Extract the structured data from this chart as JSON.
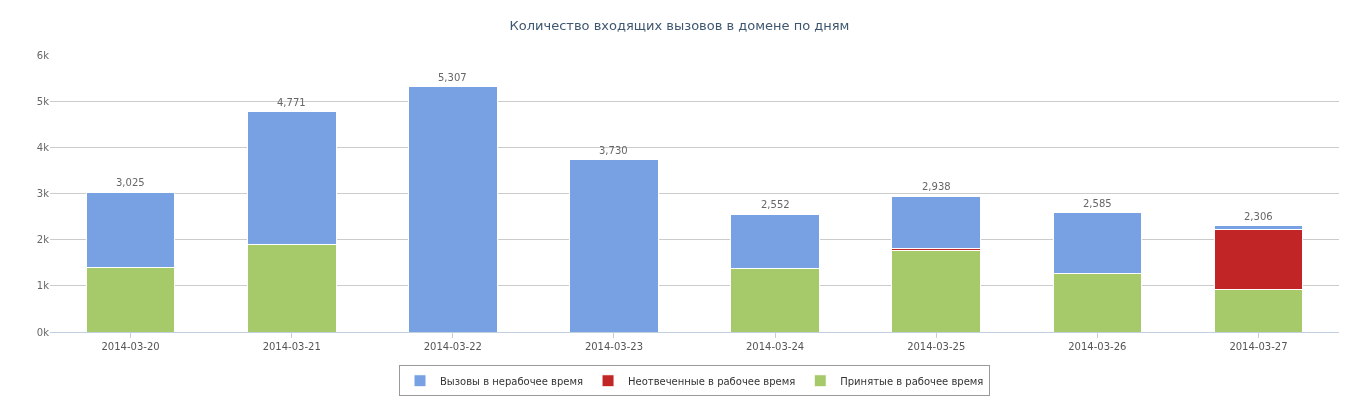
{
  "chart_data": {
    "type": "bar",
    "title": "Количество входящих вызовов в домене по дням",
    "categories": [
      "2014-03-20",
      "2014-03-21",
      "2014-03-22",
      "2014-03-23",
      "2014-03-24",
      "2014-03-25",
      "2014-03-26",
      "2014-03-27"
    ],
    "stacked": true,
    "series": [
      {
        "name": "Принятые в рабочее время",
        "color": "#a6c96a",
        "values": [
          1400,
          1900,
          0,
          0,
          1370,
          1770,
          1260,
          930
        ]
      },
      {
        "name": "Неотвеченные в рабочее время",
        "color": "#c12525",
        "values": [
          0,
          0,
          0,
          0,
          0,
          40,
          0,
          1300
        ]
      },
      {
        "name": "Вызовы в нерабочее время",
        "color": "#77a1e3",
        "values": [
          1625,
          2871,
          5307,
          3730,
          1182,
          1128,
          1325,
          76
        ]
      }
    ],
    "totals": [
      "3,025",
      "4,771",
      "5,307",
      "3,730",
      "2,552",
      "2,938",
      "2,585",
      "2,306"
    ],
    "ylim": [
      0,
      6000
    ],
    "yticks": [
      {
        "value": 0,
        "label": "0k"
      },
      {
        "value": 1000,
        "label": "1k"
      },
      {
        "value": 2000,
        "label": "2k"
      },
      {
        "value": 3000,
        "label": "3k"
      },
      {
        "value": 4000,
        "label": "4k"
      },
      {
        "value": 5000,
        "label": "5k"
      },
      {
        "value": 6000,
        "label": "6k"
      }
    ],
    "grid": "y",
    "legend": "bottom"
  }
}
